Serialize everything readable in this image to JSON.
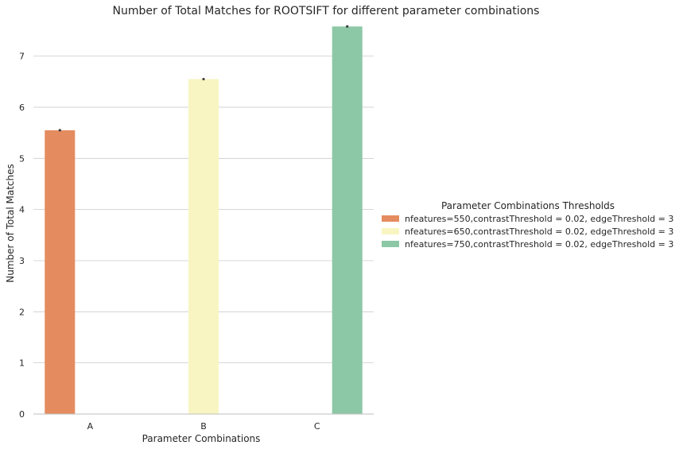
{
  "chart_data": {
    "type": "bar",
    "title": "Number of Total Matches for ROOTSIFT for different parameter combinations",
    "xlabel": "Parameter Combinations",
    "ylabel": "Number of Total Matches",
    "categories": [
      "A",
      "B",
      "C"
    ],
    "ylim": [
      0,
      7.6
    ],
    "yticks": [
      0,
      1,
      2,
      3,
      4,
      5,
      6,
      7
    ],
    "grid": true,
    "legend": {
      "title": "Parameter Combinations Thresholds",
      "placement": "right"
    },
    "series": [
      {
        "name": "nfeatures=550,contrastThreshold = 0.02, edgeThreshold = 3",
        "color": "#e48c5f",
        "values": [
          5.55,
          null,
          null
        ]
      },
      {
        "name": "nfeatures=650,contrastThreshold = 0.02, edgeThreshold = 3",
        "color": "#f8f5c2",
        "values": [
          null,
          6.55,
          null
        ]
      },
      {
        "name": "nfeatures=750,contrastThreshold = 0.02, edgeThreshold = 3",
        "color": "#8dc8a6",
        "values": [
          null,
          null,
          7.58
        ]
      }
    ]
  }
}
